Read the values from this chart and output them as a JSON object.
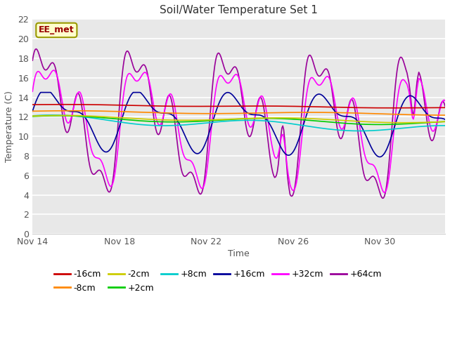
{
  "title": "Soil/Water Temperature Set 1",
  "xlabel": "Time",
  "ylabel": "Temperature (C)",
  "ylim": [
    0,
    22
  ],
  "yticks": [
    0,
    2,
    4,
    6,
    8,
    10,
    12,
    14,
    16,
    18,
    20,
    22
  ],
  "fig_bg": "#ffffff",
  "plot_bg": "#e8e8e8",
  "grid_color": "#ffffff",
  "series": {
    "-16cm": {
      "color": "#cc0000",
      "lw": 1.2
    },
    "-8cm": {
      "color": "#ff8800",
      "lw": 1.2
    },
    "-2cm": {
      "color": "#cccc00",
      "lw": 1.2
    },
    "+2cm": {
      "color": "#00cc00",
      "lw": 1.2
    },
    "+8cm": {
      "color": "#00cccc",
      "lw": 1.2
    },
    "+16cm": {
      "color": "#000099",
      "lw": 1.2
    },
    "+32cm": {
      "color": "#ff00ff",
      "lw": 1.2
    },
    "+64cm": {
      "color": "#990099",
      "lw": 1.2
    }
  },
  "xtick_labels": [
    "Nov 14",
    "Nov 18",
    "Nov 22",
    "Nov 26",
    "Nov 30"
  ],
  "xtick_positions": [
    0,
    4,
    8,
    12,
    16
  ],
  "annotation_text": "EE_met",
  "annotation_color": "#990000",
  "annotation_bg": "#ffffcc",
  "annotation_border": "#999900"
}
